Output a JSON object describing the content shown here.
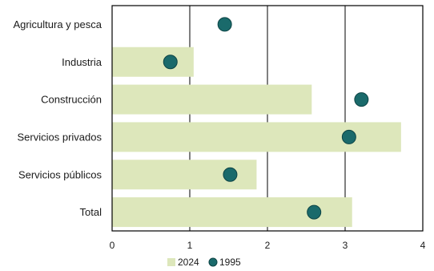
{
  "chart_data": {
    "type": "bar",
    "orientation": "horizontal",
    "categories": [
      "Agricultura y pesca",
      "Industria",
      "Construcción",
      "Servicios privados",
      "Servicios públicos",
      "Total"
    ],
    "series": [
      {
        "name": "2024",
        "kind": "bar",
        "values": [
          0,
          1.05,
          2.57,
          3.72,
          1.86,
          3.09
        ]
      },
      {
        "name": "1995",
        "kind": "dot",
        "values": [
          1.45,
          0.75,
          3.21,
          3.05,
          1.52,
          2.6
        ]
      }
    ],
    "x_ticks": [
      "0",
      "1",
      "2",
      "3",
      "4"
    ],
    "xlim": [
      0,
      4
    ],
    "grid": "vertical",
    "legend_position": "bottom",
    "colors": {
      "bar": "#dde7bb",
      "dot": "#1a6a6b",
      "dot_stroke": "#0d4445",
      "grid": "#000000"
    }
  }
}
